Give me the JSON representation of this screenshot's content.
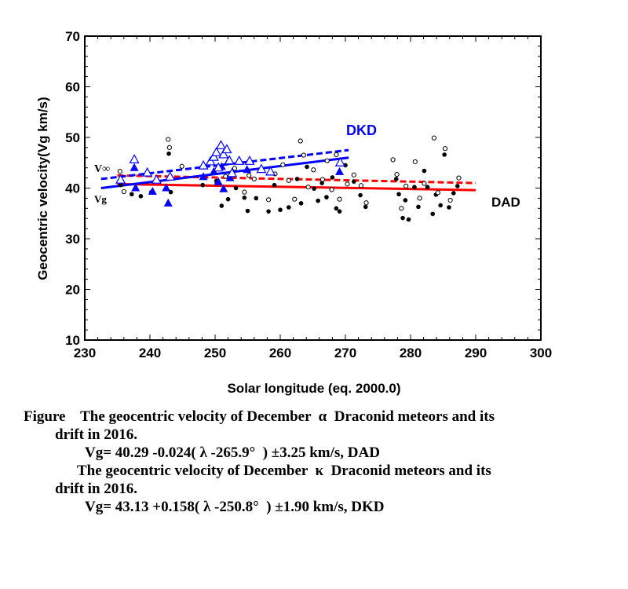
{
  "chart_data": {
    "type": "scatter",
    "xlabel": "Solar longitude (eq. 2000.0)",
    "ylabel": "Geocentric velocity(Vg km/s)",
    "xlim": [
      230,
      300
    ],
    "ylim": [
      10,
      70
    ],
    "xticks": [
      230,
      240,
      250,
      260,
      270,
      280,
      290,
      300
    ],
    "yticks": [
      10,
      20,
      30,
      40,
      50,
      60,
      70
    ],
    "annotations": {
      "dkd": "DKD",
      "dad": "DAD",
      "vinf": "V∞",
      "vg": "Vg"
    },
    "colors": {
      "dad": "#ff0000",
      "dkd": "#0000ff",
      "points": "#000000",
      "axis": "#000000"
    },
    "series": [
      {
        "name": "DAD",
        "marker": "filled-circle",
        "points": [
          [
            235.5,
            40.6
          ],
          [
            237.2,
            38.8
          ],
          [
            238.6,
            38.4
          ],
          [
            240.2,
            39.2
          ],
          [
            242.9,
            46.8
          ],
          [
            243.2,
            39.2
          ],
          [
            248.1,
            40.6
          ],
          [
            250.2,
            41.4
          ],
          [
            251.0,
            36.5
          ],
          [
            252.0,
            37.8
          ],
          [
            253.2,
            40.0
          ],
          [
            254.5,
            38.1
          ],
          [
            255.0,
            35.5
          ],
          [
            256.3,
            38.0
          ],
          [
            258.2,
            35.4
          ],
          [
            259.1,
            40.6
          ],
          [
            260.0,
            35.7
          ],
          [
            261.3,
            36.2
          ],
          [
            262.6,
            41.8
          ],
          [
            263.2,
            37.0
          ],
          [
            264.1,
            44.2
          ],
          [
            265.2,
            39.9
          ],
          [
            265.8,
            37.5
          ],
          [
            266.4,
            41.0
          ],
          [
            267.1,
            38.2
          ],
          [
            268.0,
            42.1
          ],
          [
            268.6,
            36.0
          ],
          [
            269.1,
            35.4
          ],
          [
            270.0,
            44.5
          ],
          [
            271.3,
            41.3
          ],
          [
            272.3,
            38.6
          ],
          [
            273.1,
            36.3
          ],
          [
            277.8,
            41.8
          ],
          [
            278.2,
            38.8
          ],
          [
            278.8,
            34.1
          ],
          [
            279.2,
            37.6
          ],
          [
            279.7,
            33.8
          ],
          [
            280.6,
            40.2
          ],
          [
            281.2,
            36.3
          ],
          [
            282.1,
            43.4
          ],
          [
            282.6,
            40.2
          ],
          [
            283.4,
            34.9
          ],
          [
            283.9,
            38.7
          ],
          [
            284.6,
            36.6
          ],
          [
            285.2,
            46.6
          ],
          [
            285.9,
            36.2
          ],
          [
            286.6,
            39.0
          ],
          [
            287.2,
            40.4
          ]
        ]
      },
      {
        "name": "DAD V∞",
        "marker": "open-circle",
        "points": [
          [
            235.4,
            43.3
          ],
          [
            236.0,
            39.3
          ],
          [
            242.8,
            49.6
          ],
          [
            243.0,
            48.0
          ],
          [
            244.9,
            44.3
          ],
          [
            250.3,
            41.0
          ],
          [
            251.6,
            42.3
          ],
          [
            253.0,
            43.9
          ],
          [
            254.5,
            39.2
          ],
          [
            255.2,
            42.5
          ],
          [
            256.0,
            41.8
          ],
          [
            258.2,
            37.7
          ],
          [
            259.2,
            42.8
          ],
          [
            260.4,
            44.6
          ],
          [
            261.3,
            41.5
          ],
          [
            262.2,
            37.8
          ],
          [
            263.1,
            49.3
          ],
          [
            263.6,
            46.5
          ],
          [
            264.3,
            40.2
          ],
          [
            265.1,
            43.6
          ],
          [
            266.5,
            41.7
          ],
          [
            267.2,
            45.4
          ],
          [
            267.9,
            39.7
          ],
          [
            268.6,
            46.6
          ],
          [
            269.1,
            37.8
          ],
          [
            270.3,
            40.8
          ],
          [
            271.3,
            42.6
          ],
          [
            272.4,
            40.5
          ],
          [
            273.2,
            37.1
          ],
          [
            277.3,
            45.6
          ],
          [
            277.9,
            42.7
          ],
          [
            278.6,
            36.0
          ],
          [
            279.3,
            40.4
          ],
          [
            280.7,
            45.2
          ],
          [
            281.4,
            38.0
          ],
          [
            282.1,
            40.9
          ],
          [
            283.6,
            49.9
          ],
          [
            284.2,
            39.1
          ],
          [
            285.3,
            47.8
          ],
          [
            286.1,
            37.6
          ],
          [
            287.4,
            42.0
          ]
        ]
      },
      {
        "name": "DKD",
        "marker": "filled-triangle",
        "points": [
          [
            237.6,
            44.0
          ],
          [
            237.8,
            40.0
          ],
          [
            240.4,
            39.3
          ],
          [
            242.5,
            40.0
          ],
          [
            242.8,
            37.0
          ],
          [
            248.2,
            42.2
          ],
          [
            249.8,
            43.2
          ],
          [
            250.5,
            41.2
          ],
          [
            251.0,
            44.2
          ],
          [
            251.3,
            39.8
          ],
          [
            252.0,
            45.2
          ],
          [
            252.3,
            42.0
          ],
          [
            254.9,
            43.6
          ],
          [
            269.1,
            43.2
          ]
        ]
      },
      {
        "name": "DKD V∞",
        "marker": "open-triangle",
        "points": [
          [
            235.5,
            41.6
          ],
          [
            237.6,
            45.6
          ],
          [
            239.6,
            43.0
          ],
          [
            241.0,
            41.6
          ],
          [
            243.1,
            42.2
          ],
          [
            248.2,
            44.4
          ],
          [
            249.3,
            45.2
          ],
          [
            249.8,
            46.1
          ],
          [
            250.2,
            47.0
          ],
          [
            250.5,
            44.0
          ],
          [
            250.9,
            48.4
          ],
          [
            251.3,
            46.6
          ],
          [
            251.8,
            47.6
          ],
          [
            252.2,
            45.4
          ],
          [
            252.6,
            42.9
          ],
          [
            253.7,
            45.3
          ],
          [
            255.3,
            45.3
          ],
          [
            257.1,
            43.7
          ],
          [
            258.5,
            43.2
          ],
          [
            269.2,
            45.0
          ]
        ]
      }
    ],
    "lines": [
      {
        "name": "DAD Vg",
        "color": "#ff0000",
        "style": "solid",
        "x": [
          235,
          290
        ],
        "y": [
          40.8,
          39.6
        ]
      },
      {
        "name": "DAD V∞",
        "color": "#ff0000",
        "style": "dashed",
        "x": [
          235,
          290
        ],
        "y": [
          42.5,
          41.0
        ]
      },
      {
        "name": "DKD Vg",
        "color": "#0000ff",
        "style": "solid",
        "x": [
          232.5,
          270.5
        ],
        "y": [
          40.0,
          46.0
        ]
      },
      {
        "name": "DKD V∞",
        "color": "#0000ff",
        "style": "dashed",
        "x": [
          232.5,
          270.5
        ],
        "y": [
          41.8,
          47.5
        ]
      }
    ]
  },
  "caption": {
    "line1": "Figure    The geocentric velocity of December  α  Draconid meteors and its",
    "line2": "drift in 2016.",
    "line3": "Vg= 40.29 -0.024( λ -265.9°  ) ±3.25 km/s, DAD",
    "line4": "The geocentric velocity of December  κ  Draconid meteors and its",
    "line5": "drift in 2016.",
    "line6": "Vg= 43.13 +0.158( λ -250.8°  ) ±1.90 km/s, DKD"
  }
}
